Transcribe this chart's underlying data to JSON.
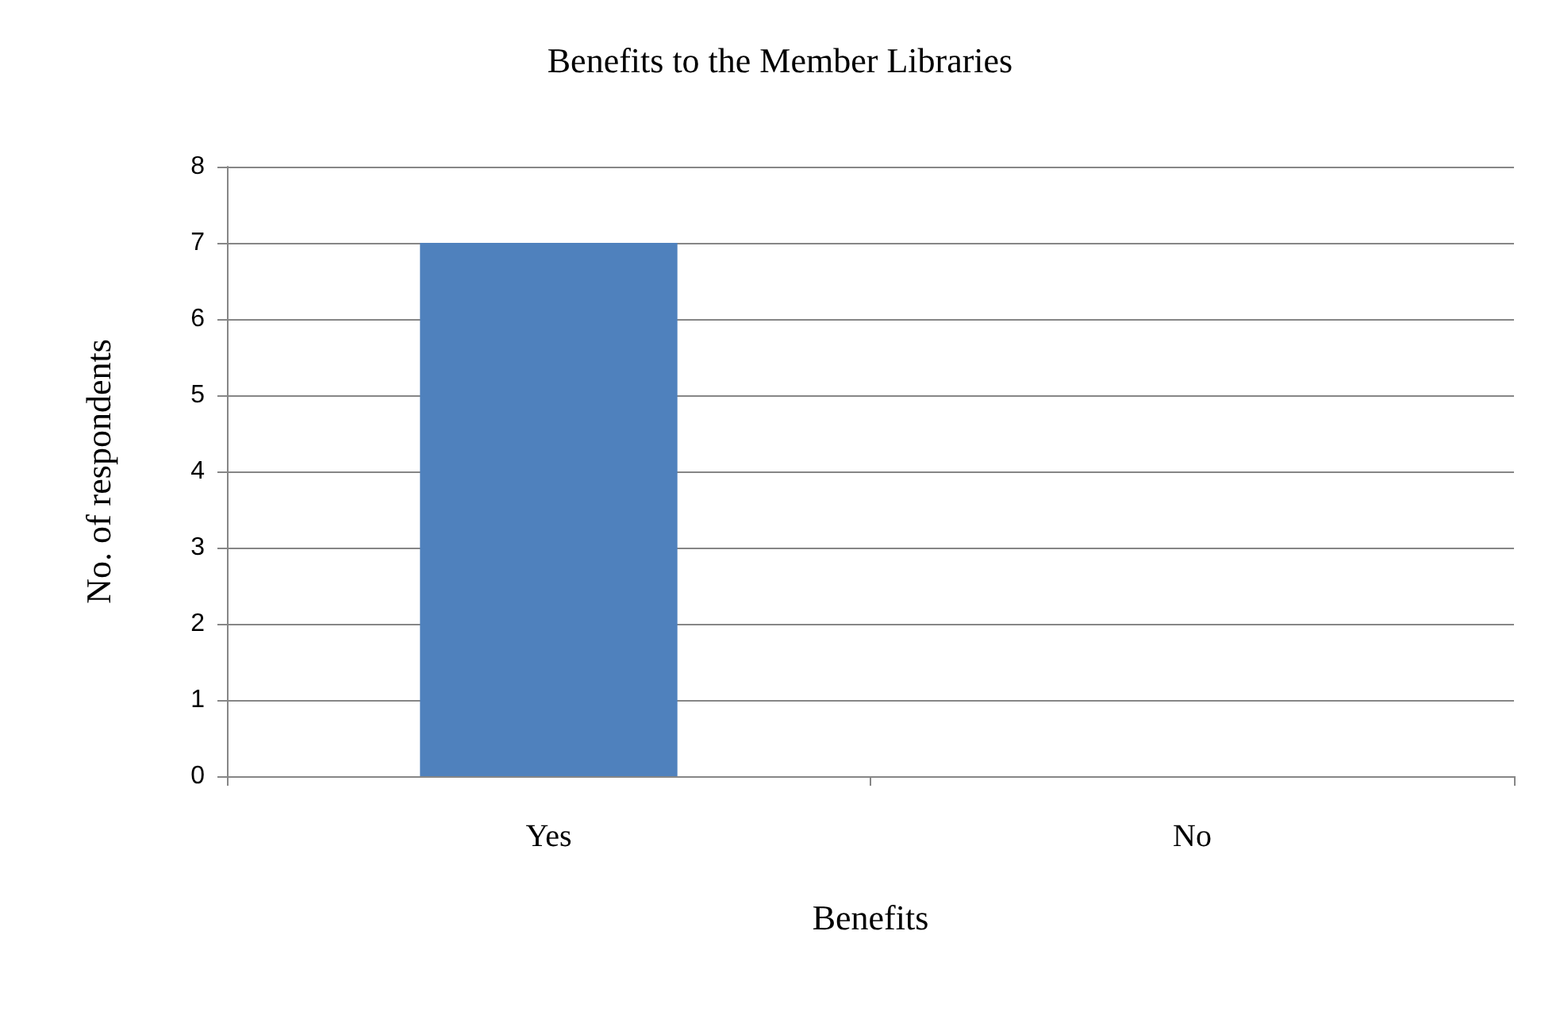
{
  "chart_data": {
    "type": "bar",
    "title": "Benefits to the Member Libraries",
    "xlabel": "Benefits",
    "ylabel": "No. of respondents",
    "categories": [
      "Yes",
      "No"
    ],
    "values": [
      7,
      0
    ],
    "color": "#4f81bd",
    "ylim": [
      0,
      8
    ],
    "yticks": [
      0,
      1,
      2,
      3,
      4,
      5,
      6,
      7,
      8
    ],
    "grid": "y"
  }
}
